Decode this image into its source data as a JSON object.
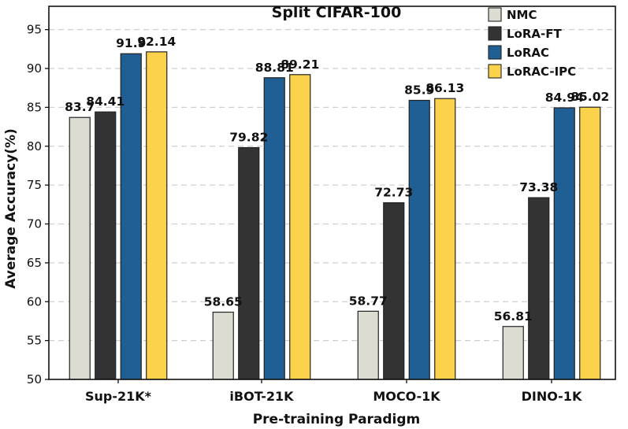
{
  "chart_data": {
    "type": "bar",
    "title": "Split CIFAR-100",
    "xlabel": "Pre-training Paradigm",
    "ylabel": "Average Accuracy(%)",
    "ylim": [
      50,
      98
    ],
    "yticks": [
      50,
      55,
      60,
      65,
      70,
      75,
      80,
      85,
      90,
      95
    ],
    "grid": "horizontal dashed",
    "legend_position": "top-right",
    "categories": [
      "Sup-21K*",
      "iBOT-21K",
      "MOCO-1K",
      "DINO-1K"
    ],
    "series": [
      {
        "name": "NMC",
        "color": "#dcdcd2",
        "values": [
          83.7,
          58.65,
          58.77,
          56.81
        ],
        "labels": [
          "83.7",
          "58.65",
          "58.77",
          "56.81"
        ]
      },
      {
        "name": "LoRA-FT",
        "color": "#333333",
        "values": [
          84.41,
          79.82,
          72.73,
          73.38
        ],
        "labels": [
          "84.41",
          "79.82",
          "72.73",
          "73.38"
        ]
      },
      {
        "name": "LoRAC",
        "color": "#1f5f94",
        "values": [
          91.9,
          88.81,
          85.9,
          84.94
        ],
        "labels": [
          "91.9",
          "88.81",
          "85.9",
          "84.94"
        ]
      },
      {
        "name": "LoRAC-IPC",
        "color": "#fbd24b",
        "values": [
          92.14,
          89.21,
          86.13,
          85.02
        ],
        "labels": [
          "92.14",
          "89.21",
          "86.13",
          "85.02"
        ]
      }
    ]
  }
}
